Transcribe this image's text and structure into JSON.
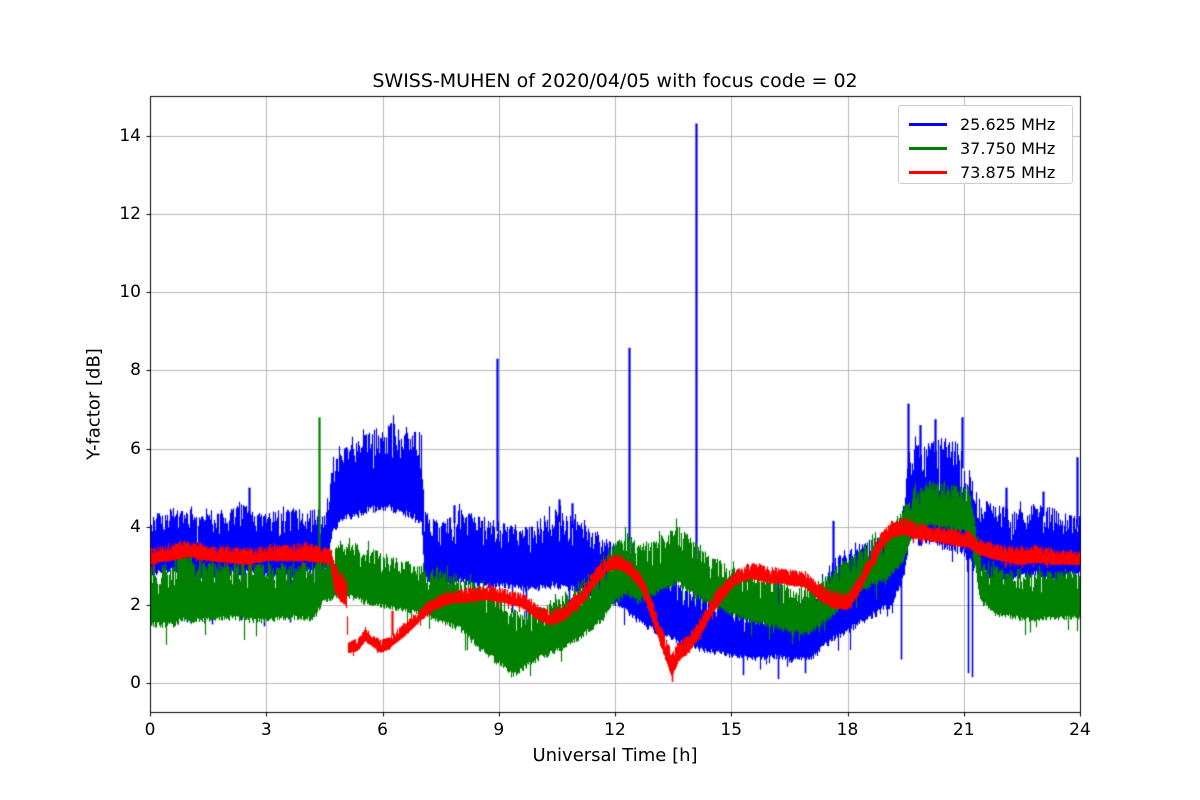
{
  "title": "SWISS-MUHEN of 2020/04/05 with focus code = 02",
  "axes": {
    "xlabel": "Universal Time [h]",
    "ylabel": "Y-factor [dB]"
  },
  "legend": {
    "position": "upper right",
    "entries": [
      {
        "label": "25.625 MHz",
        "color": "#0000ff"
      },
      {
        "label": "37.750 MHz",
        "color": "#008000"
      },
      {
        "label": "73.875 MHz",
        "color": "#ff0000"
      }
    ]
  },
  "colors": {
    "grid": "#b0b0b0",
    "spine": "#000000",
    "background": "#ffffff",
    "legend_border": "#cccccc"
  },
  "chart_data": {
    "type": "line",
    "title": "SWISS-MUHEN of 2020/04/05 with focus code = 02",
    "xlabel": "Universal Time [h]",
    "ylabel": "Y-factor [dB]",
    "xlim": [
      0,
      24
    ],
    "ylim": [
      -0.742,
      15.022
    ],
    "x_ticks": [
      0,
      3,
      6,
      9,
      12,
      15,
      18,
      21,
      24
    ],
    "y_ticks": [
      0,
      2,
      4,
      6,
      8,
      10,
      12,
      14
    ],
    "grid": true,
    "legend_position": "upper right",
    "note": "Noisy radio Y-factor time series; each series stored as band envelope keypoints [time_h, min_dB, max_dB] plus isolated spikes [time_h, value_dB]",
    "series": [
      {
        "name": "25.625 MHz",
        "color": "#0000ff",
        "band": [
          [
            0,
            2.7,
            4.3
          ],
          [
            0.6,
            2.8,
            4.5
          ],
          [
            1.2,
            2.6,
            4.3
          ],
          [
            1.8,
            2.7,
            4.35
          ],
          [
            2.4,
            2.75,
            4.6
          ],
          [
            2.8,
            2.7,
            4.3
          ],
          [
            3.4,
            2.65,
            4.45
          ],
          [
            4.0,
            2.75,
            4.4
          ],
          [
            4.55,
            2.9,
            4.5
          ],
          [
            4.7,
            3.8,
            5.6
          ],
          [
            5.0,
            4.1,
            6.0
          ],
          [
            5.6,
            4.3,
            6.4
          ],
          [
            6.1,
            4.4,
            6.7
          ],
          [
            6.6,
            4.2,
            6.6
          ],
          [
            7.0,
            4.0,
            6.4
          ],
          [
            7.08,
            2.6,
            4.4
          ],
          [
            7.5,
            2.4,
            4.1
          ],
          [
            8.0,
            2.5,
            4.5
          ],
          [
            8.6,
            2.4,
            4.2
          ],
          [
            9.2,
            2.4,
            4.1
          ],
          [
            9.8,
            2.3,
            4.0
          ],
          [
            10.4,
            2.4,
            4.5
          ],
          [
            11.0,
            2.3,
            4.2
          ],
          [
            11.6,
            2.1,
            3.8
          ],
          [
            12.1,
            1.9,
            3.5
          ],
          [
            12.6,
            1.5,
            3.1
          ],
          [
            13.1,
            1.2,
            2.9
          ],
          [
            13.6,
            1.0,
            2.6
          ],
          [
            14.1,
            0.8,
            2.4
          ],
          [
            14.6,
            0.7,
            2.2
          ],
          [
            15.1,
            0.6,
            2.05
          ],
          [
            15.6,
            0.55,
            1.95
          ],
          [
            16.1,
            0.6,
            2.1
          ],
          [
            16.6,
            0.5,
            1.95
          ],
          [
            17.1,
            0.6,
            2.2
          ],
          [
            17.6,
            1.0,
            3.1
          ],
          [
            18.1,
            1.3,
            3.5
          ],
          [
            18.6,
            1.6,
            3.7
          ],
          [
            19.1,
            1.9,
            3.8
          ],
          [
            19.45,
            2.6,
            4.6
          ],
          [
            19.6,
            3.5,
            6.2
          ],
          [
            20.0,
            3.5,
            6.1
          ],
          [
            20.4,
            3.4,
            6.3
          ],
          [
            20.8,
            3.3,
            6.2
          ],
          [
            21.1,
            3.1,
            5.6
          ],
          [
            21.35,
            2.8,
            4.8
          ],
          [
            21.8,
            2.6,
            4.6
          ],
          [
            22.3,
            2.6,
            4.4
          ],
          [
            22.8,
            2.7,
            4.6
          ],
          [
            23.3,
            2.6,
            4.5
          ],
          [
            23.8,
            2.7,
            4.3
          ],
          [
            24,
            2.7,
            4.2
          ]
        ],
        "spikes_up": [
          [
            2.55,
            5.0
          ],
          [
            7.85,
            4.55
          ],
          [
            8.95,
            8.3
          ],
          [
            10.55,
            4.7
          ],
          [
            10.9,
            4.6
          ],
          [
            12.37,
            8.58
          ],
          [
            14.1,
            14.32
          ],
          [
            16.2,
            2.85
          ],
          [
            17.62,
            4.15
          ],
          [
            19.55,
            7.15
          ],
          [
            19.86,
            6.6
          ],
          [
            20.25,
            6.75
          ],
          [
            20.95,
            6.8
          ],
          [
            22.1,
            5.0
          ],
          [
            23.05,
            4.9
          ],
          [
            23.93,
            5.78
          ]
        ],
        "spikes_down": [
          [
            0.35,
            1.7
          ],
          [
            0.95,
            1.55
          ],
          [
            1.6,
            1.5
          ],
          [
            2.35,
            1.6
          ],
          [
            2.95,
            1.45
          ],
          [
            3.6,
            1.55
          ],
          [
            4.2,
            1.7
          ],
          [
            8.35,
            1.7
          ],
          [
            8.85,
            1.55
          ],
          [
            9.35,
            1.8
          ],
          [
            9.7,
            1.5
          ],
          [
            10.8,
            1.9
          ],
          [
            15.3,
            0.2
          ],
          [
            16.2,
            0.1
          ],
          [
            16.9,
            0.25
          ],
          [
            19.38,
            0.6
          ],
          [
            21.1,
            0.25
          ],
          [
            21.22,
            0.15
          ]
        ]
      },
      {
        "name": "37.750 MHz",
        "color": "#008000",
        "band": [
          [
            0,
            1.4,
            3.0
          ],
          [
            0.5,
            1.4,
            3.1
          ],
          [
            0.9,
            1.5,
            3.5
          ],
          [
            1.2,
            1.5,
            3.2
          ],
          [
            1.7,
            1.55,
            3.05
          ],
          [
            2.2,
            1.6,
            3.1
          ],
          [
            2.7,
            1.5,
            3.05
          ],
          [
            3.2,
            1.55,
            3.1
          ],
          [
            3.7,
            1.6,
            3.05
          ],
          [
            4.2,
            1.55,
            3.1
          ],
          [
            4.45,
            2.0,
            3.3
          ],
          [
            5.0,
            2.2,
            3.6
          ],
          [
            5.5,
            2.0,
            3.5
          ],
          [
            6.0,
            1.9,
            3.35
          ],
          [
            6.5,
            1.8,
            3.15
          ],
          [
            7.0,
            1.7,
            3.0
          ],
          [
            7.5,
            1.5,
            2.9
          ],
          [
            8.0,
            1.3,
            2.75
          ],
          [
            8.5,
            0.8,
            2.5
          ],
          [
            9.0,
            0.4,
            2.2
          ],
          [
            9.35,
            0.1,
            1.9
          ],
          [
            9.7,
            0.35,
            1.85
          ],
          [
            10.1,
            0.6,
            2.0
          ],
          [
            10.6,
            0.8,
            2.2
          ],
          [
            11.1,
            1.1,
            2.6
          ],
          [
            11.6,
            1.5,
            3.0
          ],
          [
            12.0,
            2.0,
            3.6
          ],
          [
            12.3,
            2.2,
            3.85
          ],
          [
            12.6,
            2.0,
            3.6
          ],
          [
            13.0,
            2.2,
            3.65
          ],
          [
            13.6,
            2.5,
            4.1
          ],
          [
            14.0,
            2.2,
            3.6
          ],
          [
            14.5,
            1.9,
            3.25
          ],
          [
            15.0,
            1.7,
            3.0
          ],
          [
            15.5,
            1.5,
            2.8
          ],
          [
            16.0,
            1.4,
            2.65
          ],
          [
            16.5,
            1.25,
            2.5
          ],
          [
            17.0,
            1.2,
            2.45
          ],
          [
            17.5,
            1.6,
            2.8
          ],
          [
            18.0,
            2.0,
            3.2
          ],
          [
            18.5,
            2.4,
            3.6
          ],
          [
            19.0,
            2.6,
            3.9
          ],
          [
            19.4,
            3.0,
            4.4
          ],
          [
            19.7,
            3.8,
            5.0
          ],
          [
            20.1,
            4.0,
            5.2
          ],
          [
            20.6,
            3.9,
            5.1
          ],
          [
            21.1,
            3.8,
            5.0
          ],
          [
            21.25,
            3.3,
            4.6
          ],
          [
            21.4,
            2.1,
            3.3
          ],
          [
            21.8,
            1.7,
            3.0
          ],
          [
            22.3,
            1.6,
            2.9
          ],
          [
            22.8,
            1.55,
            2.85
          ],
          [
            23.3,
            1.6,
            2.9
          ],
          [
            24,
            1.6,
            2.85
          ]
        ],
        "spikes_up": [
          [
            4.37,
            6.8
          ]
        ],
        "spikes_down": []
      },
      {
        "name": "73.875 MHz",
        "color": "#ff0000",
        "band": [
          [
            0,
            3.0,
            3.45
          ],
          [
            0.5,
            3.1,
            3.55
          ],
          [
            1.0,
            3.2,
            3.65
          ],
          [
            1.5,
            3.1,
            3.5
          ],
          [
            2.0,
            3.05,
            3.5
          ],
          [
            2.5,
            3.0,
            3.45
          ],
          [
            3.0,
            3.1,
            3.5
          ],
          [
            3.5,
            3.1,
            3.55
          ],
          [
            4.0,
            3.1,
            3.6
          ],
          [
            4.4,
            3.05,
            3.5
          ],
          [
            4.65,
            3.0,
            3.45
          ],
          [
            4.75,
            2.3,
            3.1
          ],
          [
            4.95,
            2.0,
            2.8
          ],
          [
            5.06,
            1.9,
            2.7
          ],
          [
            5.1,
            0.75,
            1.05
          ],
          [
            5.35,
            0.8,
            1.15
          ],
          [
            5.55,
            1.05,
            1.4
          ],
          [
            5.75,
            0.9,
            1.25
          ],
          [
            5.95,
            0.75,
            1.1
          ],
          [
            6.15,
            0.85,
            1.2
          ],
          [
            6.4,
            1.05,
            1.4
          ],
          [
            6.7,
            1.3,
            1.65
          ],
          [
            7.0,
            1.6,
            1.95
          ],
          [
            7.3,
            1.85,
            2.2
          ],
          [
            7.7,
            2.0,
            2.35
          ],
          [
            8.2,
            2.05,
            2.45
          ],
          [
            8.7,
            2.1,
            2.5
          ],
          [
            9.2,
            2.0,
            2.4
          ],
          [
            9.6,
            1.9,
            2.3
          ],
          [
            10.0,
            1.6,
            2.0
          ],
          [
            10.35,
            1.45,
            1.85
          ],
          [
            10.7,
            1.6,
            2.0
          ],
          [
            11.1,
            1.95,
            2.4
          ],
          [
            11.5,
            2.5,
            2.95
          ],
          [
            11.8,
            2.85,
            3.25
          ],
          [
            12.1,
            2.9,
            3.3
          ],
          [
            12.4,
            2.7,
            3.1
          ],
          [
            12.7,
            2.3,
            2.75
          ],
          [
            13.0,
            1.4,
            2.0
          ],
          [
            13.25,
            0.7,
            1.3
          ],
          [
            13.45,
            0.15,
            0.8
          ],
          [
            13.65,
            0.55,
            1.05
          ],
          [
            13.9,
            0.75,
            1.25
          ],
          [
            14.2,
            1.2,
            1.7
          ],
          [
            14.5,
            1.75,
            2.25
          ],
          [
            14.8,
            2.15,
            2.6
          ],
          [
            15.1,
            2.5,
            2.9
          ],
          [
            15.5,
            2.65,
            3.08
          ],
          [
            15.9,
            2.55,
            3.0
          ],
          [
            16.4,
            2.5,
            2.92
          ],
          [
            16.9,
            2.42,
            2.85
          ],
          [
            17.2,
            2.15,
            2.6
          ],
          [
            17.6,
            1.9,
            2.35
          ],
          [
            18.0,
            1.85,
            2.3
          ],
          [
            18.25,
            2.2,
            2.7
          ],
          [
            18.55,
            2.8,
            3.3
          ],
          [
            18.85,
            3.4,
            3.85
          ],
          [
            19.15,
            3.7,
            4.15
          ],
          [
            19.45,
            3.78,
            4.25
          ],
          [
            19.8,
            3.65,
            4.1
          ],
          [
            20.2,
            3.6,
            4.0
          ],
          [
            20.7,
            3.5,
            3.95
          ],
          [
            21.1,
            3.45,
            3.9
          ],
          [
            21.4,
            3.25,
            3.68
          ],
          [
            21.9,
            3.1,
            3.55
          ],
          [
            22.4,
            3.0,
            3.48
          ],
          [
            22.9,
            3.05,
            3.5
          ],
          [
            23.4,
            3.0,
            3.42
          ],
          [
            24,
            3.0,
            3.4
          ]
        ],
        "spikes_up": [
          [
            6.25,
            1.85
          ]
        ],
        "spikes_down": [
          [
            13.47,
            0.03
          ]
        ]
      }
    ]
  }
}
